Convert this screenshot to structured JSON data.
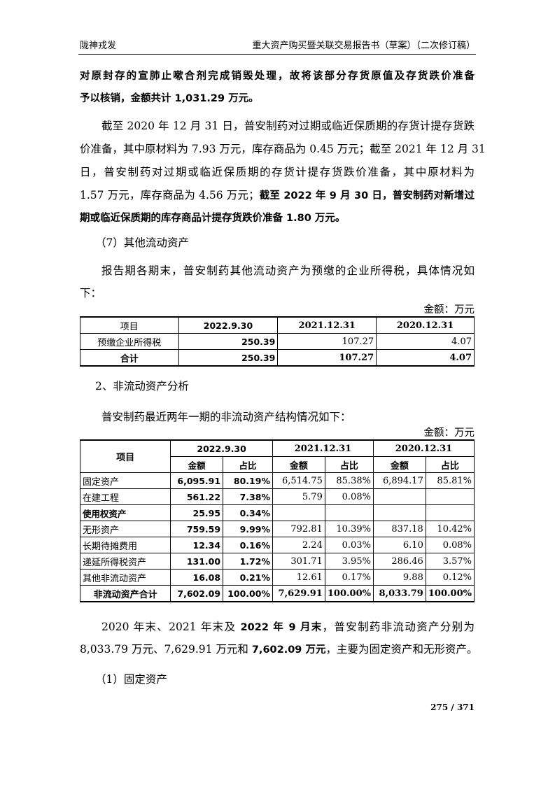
{
  "header": {
    "left": "陇神戎发",
    "right": "重大资产购买暨关联交易报告书（草案）（二次修订稿）"
  },
  "p1": [
    "对原封存的宣肺止嗽合剂完成销毁处理，故将该部分存货原值及存货跌价准备",
    "予以核销，金额共计 1,031.29 万元。"
  ],
  "p2": [
    "截至 2020 年 12 月 31 日，普安制药对过期或临近保质期的存货计提存货跌",
    "价准备，其中原材料为 7.93 万元，库存商品为 0.45 万元；截至 2021 年 12 月 31",
    "日，普安制药对过期或临近保质期的存货计提存货跌价准备，其中原材料为",
    "1.57 万元，库存商品为 4.56 万元；",
    "截至 2022 年 9 月 30 日，普安制药对新增过",
    "期或临近保质期的库存商品计提存货跌价准备 1.80 万元。"
  ],
  "sec7": "（7）其他流动资产",
  "p3": [
    "报告期各期末，普安制药其他流动资产为预缴的企业所得税，具体情况如",
    "下："
  ],
  "unit": "金额：万元",
  "table1": {
    "headers": [
      "项目",
      "2022.9.30",
      "2021.12.31",
      "2020.12.31"
    ],
    "rows": [
      [
        "预缴企业所得税",
        "250.39",
        "107.27",
        "4.07"
      ],
      [
        "合计",
        "250.39",
        "107.27",
        "4.07"
      ]
    ]
  },
  "sec2": "2、非流动资产分析",
  "p4": "普安制药最近两年一期的非流动资产结构情况如下：",
  "table2": {
    "h_item": "项目",
    "periods": [
      "2022.9.30",
      "2021.12.31",
      "2020.12.31"
    ],
    "sub": [
      "金额",
      "占比"
    ],
    "rows": [
      [
        "固定资产",
        "6,095.91",
        "80.19%",
        "6,514.75",
        "85.38%",
        "6,894.17",
        "85.81%"
      ],
      [
        "在建工程",
        "561.22",
        "7.38%",
        "5.79",
        "0.08%",
        "",
        ""
      ],
      [
        "使用权资产",
        "25.95",
        "0.34%",
        "",
        "",
        "",
        ""
      ],
      [
        "无形资产",
        "759.59",
        "9.99%",
        "792.81",
        "10.39%",
        "837.18",
        "10.42%"
      ],
      [
        "长期待摊费用",
        "12.34",
        "0.16%",
        "2.24",
        "0.03%",
        "6.10",
        "0.08%"
      ],
      [
        "递延所得税资产",
        "131.00",
        "1.72%",
        "301.71",
        "3.95%",
        "286.46",
        "3.57%"
      ],
      [
        "其他非流动资产",
        "16.08",
        "0.21%",
        "12.61",
        "0.17%",
        "9.88",
        "0.12%"
      ],
      [
        "非流动资产合计",
        "7,602.09",
        "100.00%",
        "7,629.91",
        "100.00%",
        "8,033.79",
        "100.00%"
      ]
    ]
  },
  "p5": [
    "2020 年末、2021 年末及 ",
    "2022 年 9 月末",
    "，普安制药非流动资产分别为",
    "8,033.79 万元、7,629.91 万元和 ",
    "7,602.09 万元",
    "，主要为固定资产和无形资产。"
  ],
  "sec1": "（1）固定资产",
  "page": "275 / 371"
}
